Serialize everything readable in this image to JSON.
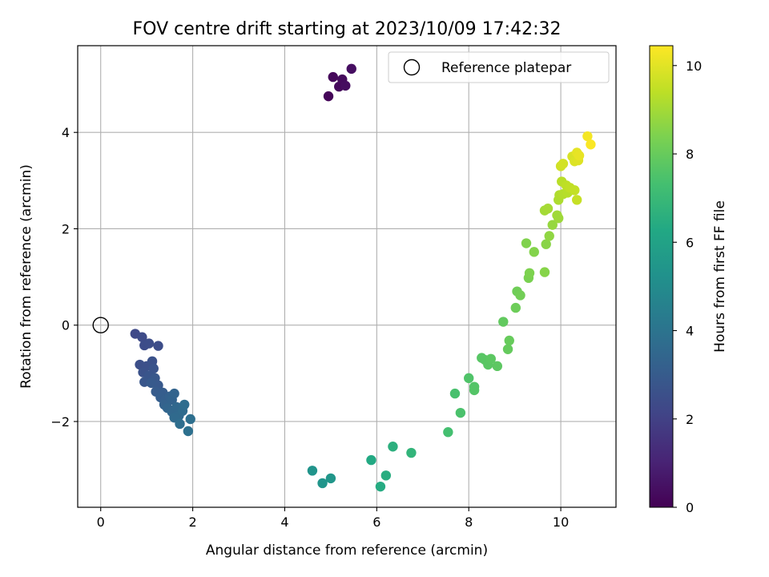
{
  "chart_data": {
    "type": "scatter",
    "title": "FOV centre drift starting at 2023/10/09 17:42:32",
    "xlabel": "Angular distance from reference (arcmin)",
    "ylabel": "Rotation from reference (arcmin)",
    "xlim": [
      -0.5,
      11.2
    ],
    "ylim": [
      -3.78,
      5.8
    ],
    "xticks": [
      0,
      2,
      4,
      6,
      8,
      10
    ],
    "yticks": [
      -2,
      0,
      2,
      4
    ],
    "grid": true,
    "colormap": "viridis",
    "colorbar": {
      "label": "Hours from first FF file",
      "range": [
        0,
        10.45
      ],
      "ticks": [
        0,
        2,
        4,
        6,
        8,
        10
      ]
    },
    "legend": {
      "position": "top-right",
      "entries": [
        {
          "label": "Reference platepar",
          "marker": "open-circle",
          "x": 0,
          "y": 0
        }
      ]
    },
    "series": [
      {
        "points": [
          {
            "x": 4.95,
            "y": 4.75,
            "c": 0.15
          },
          {
            "x": 5.05,
            "y": 5.15,
            "c": 0.2
          },
          {
            "x": 5.18,
            "y": 4.95,
            "c": 0.25
          },
          {
            "x": 5.25,
            "y": 5.1,
            "c": 0.3
          },
          {
            "x": 5.32,
            "y": 4.97,
            "c": 0.35
          },
          {
            "x": 5.45,
            "y": 5.32,
            "c": 0.4
          },
          {
            "x": 0.75,
            "y": -0.18,
            "c": 2.3
          },
          {
            "x": 0.9,
            "y": -0.25,
            "c": 2.35
          },
          {
            "x": 0.95,
            "y": -0.42,
            "c": 2.4
          },
          {
            "x": 1.25,
            "y": -0.43,
            "c": 2.45
          },
          {
            "x": 1.05,
            "y": -0.38,
            "c": 2.45
          },
          {
            "x": 0.85,
            "y": -0.82,
            "c": 2.5
          },
          {
            "x": 1.0,
            "y": -0.85,
            "c": 2.55
          },
          {
            "x": 1.12,
            "y": -0.75,
            "c": 2.6
          },
          {
            "x": 0.92,
            "y": -0.98,
            "c": 2.65
          },
          {
            "x": 1.15,
            "y": -0.9,
            "c": 2.7
          },
          {
            "x": 1.05,
            "y": -1.05,
            "c": 2.75
          },
          {
            "x": 0.95,
            "y": -1.18,
            "c": 2.8
          },
          {
            "x": 1.18,
            "y": -1.1,
            "c": 2.85
          },
          {
            "x": 1.25,
            "y": -1.25,
            "c": 2.9
          },
          {
            "x": 1.1,
            "y": -1.2,
            "c": 2.95
          },
          {
            "x": 1.2,
            "y": -1.38,
            "c": 3.0
          },
          {
            "x": 1.35,
            "y": -1.4,
            "c": 3.05
          },
          {
            "x": 1.3,
            "y": -1.5,
            "c": 3.1
          },
          {
            "x": 1.4,
            "y": -1.55,
            "c": 3.15
          },
          {
            "x": 1.5,
            "y": -1.48,
            "c": 3.2
          },
          {
            "x": 1.38,
            "y": -1.65,
            "c": 3.25
          },
          {
            "x": 1.55,
            "y": -1.55,
            "c": 3.3
          },
          {
            "x": 1.6,
            "y": -1.42,
            "c": 3.35
          },
          {
            "x": 1.45,
            "y": -1.72,
            "c": 3.4
          },
          {
            "x": 1.55,
            "y": -1.8,
            "c": 3.45
          },
          {
            "x": 1.65,
            "y": -1.7,
            "c": 3.5
          },
          {
            "x": 1.7,
            "y": -1.88,
            "c": 3.55
          },
          {
            "x": 1.6,
            "y": -1.92,
            "c": 3.6
          },
          {
            "x": 1.78,
            "y": -1.78,
            "c": 3.65
          },
          {
            "x": 1.82,
            "y": -1.65,
            "c": 3.7
          },
          {
            "x": 1.72,
            "y": -2.05,
            "c": 3.75
          },
          {
            "x": 1.95,
            "y": -1.95,
            "c": 3.8
          },
          {
            "x": 1.9,
            "y": -2.2,
            "c": 3.85
          },
          {
            "x": 4.6,
            "y": -3.02,
            "c": 5.35
          },
          {
            "x": 4.82,
            "y": -3.28,
            "c": 5.4
          },
          {
            "x": 5.0,
            "y": -3.18,
            "c": 5.45
          },
          {
            "x": 5.88,
            "y": -2.8,
            "c": 6.3
          },
          {
            "x": 6.08,
            "y": -3.35,
            "c": 6.4
          },
          {
            "x": 6.2,
            "y": -3.12,
            "c": 6.5
          },
          {
            "x": 6.35,
            "y": -2.52,
            "c": 6.6
          },
          {
            "x": 6.75,
            "y": -2.65,
            "c": 6.8
          },
          {
            "x": 7.55,
            "y": -2.22,
            "c": 7.3
          },
          {
            "x": 7.7,
            "y": -1.42,
            "c": 7.4
          },
          {
            "x": 7.82,
            "y": -1.82,
            "c": 7.45
          },
          {
            "x": 8.0,
            "y": -1.1,
            "c": 7.55
          },
          {
            "x": 8.12,
            "y": -1.28,
            "c": 7.6
          },
          {
            "x": 8.12,
            "y": -1.35,
            "c": 7.62
          },
          {
            "x": 8.28,
            "y": -0.68,
            "c": 7.7
          },
          {
            "x": 8.35,
            "y": -0.72,
            "c": 7.72
          },
          {
            "x": 8.42,
            "y": -0.82,
            "c": 7.75
          },
          {
            "x": 8.48,
            "y": -0.7,
            "c": 7.78
          },
          {
            "x": 8.62,
            "y": -0.85,
            "c": 7.8
          },
          {
            "x": 8.75,
            "y": 0.07,
            "c": 7.9
          },
          {
            "x": 8.85,
            "y": -0.5,
            "c": 7.95
          },
          {
            "x": 8.88,
            "y": -0.32,
            "c": 8.0
          },
          {
            "x": 9.02,
            "y": 0.36,
            "c": 8.1
          },
          {
            "x": 9.05,
            "y": 0.7,
            "c": 8.15
          },
          {
            "x": 9.12,
            "y": 0.62,
            "c": 8.2
          },
          {
            "x": 9.3,
            "y": 0.98,
            "c": 8.35
          },
          {
            "x": 9.32,
            "y": 1.08,
            "c": 8.4
          },
          {
            "x": 9.25,
            "y": 1.7,
            "c": 8.45
          },
          {
            "x": 9.42,
            "y": 1.52,
            "c": 8.5
          },
          {
            "x": 9.65,
            "y": 1.1,
            "c": 8.55
          },
          {
            "x": 9.68,
            "y": 1.68,
            "c": 8.6
          },
          {
            "x": 9.75,
            "y": 1.85,
            "c": 8.7
          },
          {
            "x": 9.82,
            "y": 2.08,
            "c": 8.8
          },
          {
            "x": 9.95,
            "y": 2.22,
            "c": 8.9
          },
          {
            "x": 9.92,
            "y": 2.28,
            "c": 8.95
          },
          {
            "x": 9.65,
            "y": 2.38,
            "c": 9.0
          },
          {
            "x": 9.72,
            "y": 2.42,
            "c": 9.05
          },
          {
            "x": 9.95,
            "y": 2.6,
            "c": 9.15
          },
          {
            "x": 9.97,
            "y": 2.7,
            "c": 9.2
          },
          {
            "x": 10.05,
            "y": 2.72,
            "c": 9.25
          },
          {
            "x": 10.15,
            "y": 2.75,
            "c": 9.3
          },
          {
            "x": 10.02,
            "y": 2.98,
            "c": 9.35
          },
          {
            "x": 10.12,
            "y": 2.9,
            "c": 9.4
          },
          {
            "x": 10.2,
            "y": 2.85,
            "c": 9.45
          },
          {
            "x": 10.3,
            "y": 2.8,
            "c": 9.5
          },
          {
            "x": 10.35,
            "y": 2.6,
            "c": 9.55
          },
          {
            "x": 10.0,
            "y": 3.3,
            "c": 9.7
          },
          {
            "x": 10.05,
            "y": 3.35,
            "c": 9.75
          },
          {
            "x": 10.25,
            "y": 3.5,
            "c": 9.85
          },
          {
            "x": 10.3,
            "y": 3.4,
            "c": 9.9
          },
          {
            "x": 10.38,
            "y": 3.42,
            "c": 9.95
          },
          {
            "x": 10.35,
            "y": 3.58,
            "c": 10.05
          },
          {
            "x": 10.4,
            "y": 3.52,
            "c": 10.1
          },
          {
            "x": 10.58,
            "y": 3.92,
            "c": 10.3
          },
          {
            "x": 10.65,
            "y": 3.75,
            "c": 10.4
          }
        ]
      }
    ]
  }
}
